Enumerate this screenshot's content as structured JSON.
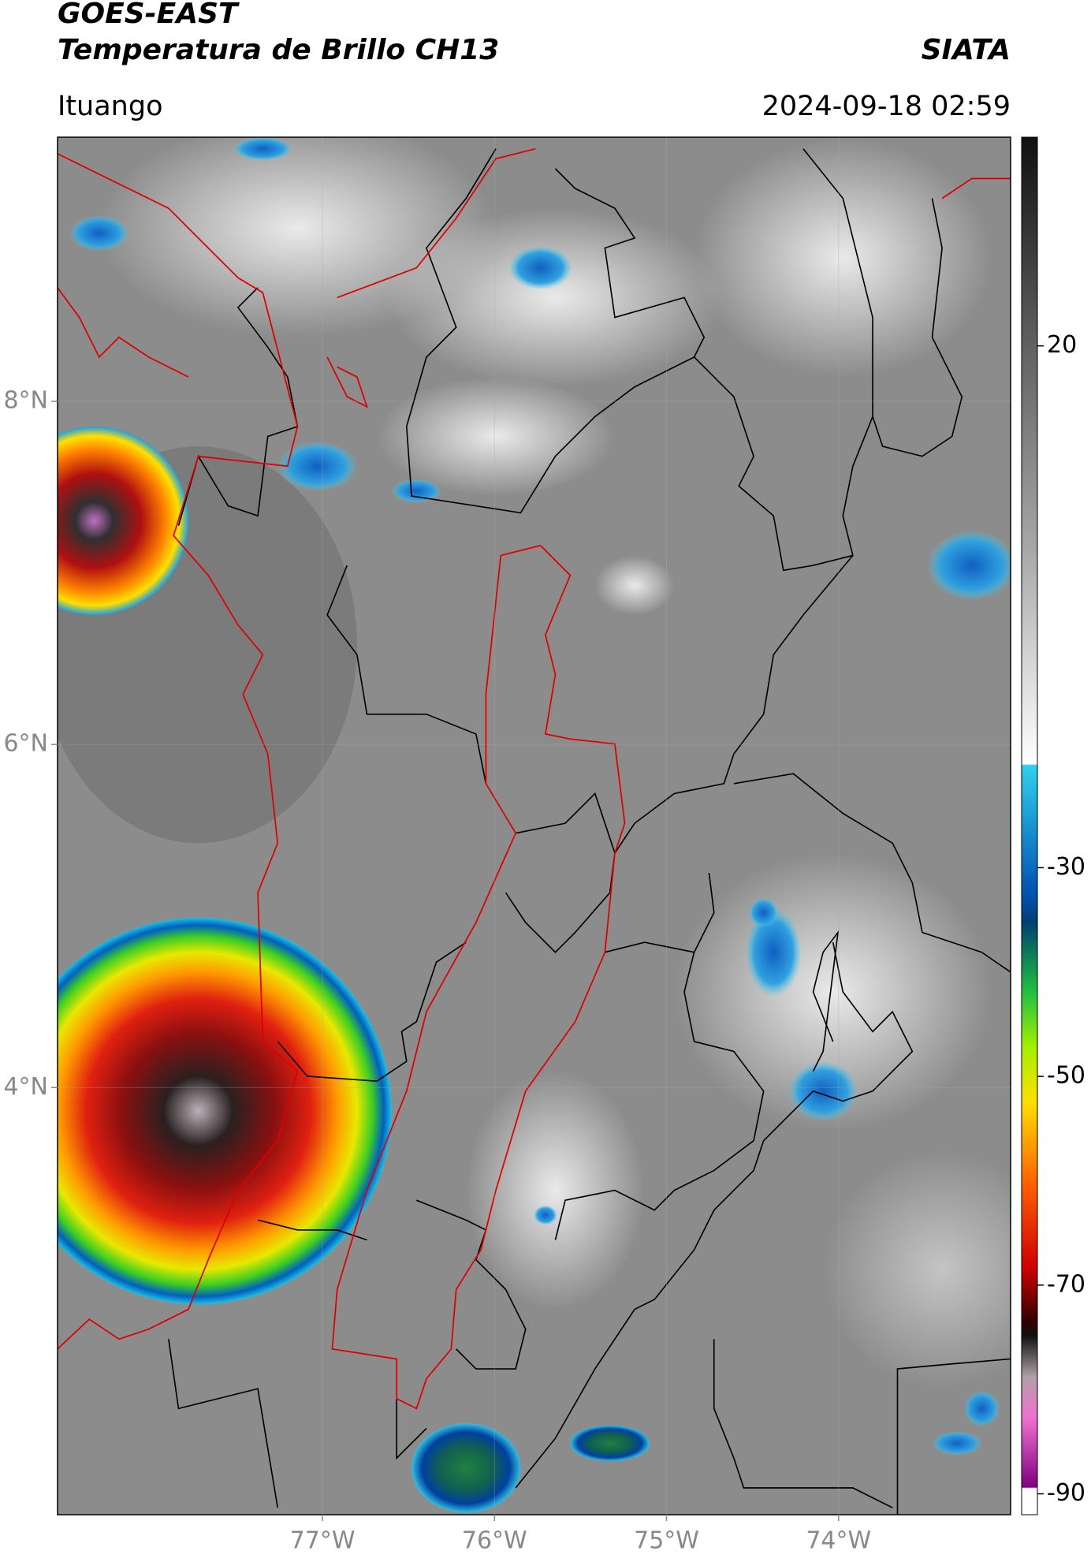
{
  "map": {
    "title": "GOES-EAST",
    "subtitle": "Temperatura de Brillo CH13",
    "source": "SIATA",
    "location": "Ituango",
    "timestamp": "2024-09-18 02:59",
    "xlim": [
      -78.54,
      -73.0
    ],
    "ylim": [
      1.51,
      9.54
    ],
    "xticks": [
      {
        "value": -77,
        "label": "77°W"
      },
      {
        "value": -76,
        "label": "76°W"
      },
      {
        "value": -75,
        "label": "75°W"
      },
      {
        "value": -74,
        "label": "74°W"
      }
    ],
    "yticks": [
      {
        "value": 8,
        "label": "8°N"
      },
      {
        "value": 6,
        "label": "6°N"
      },
      {
        "value": 4,
        "label": "4°N"
      }
    ],
    "colorbar": {
      "lim": [
        -92,
        40
      ],
      "ticks": [
        20,
        -30,
        -50,
        -70,
        -90
      ]
    }
  }
}
